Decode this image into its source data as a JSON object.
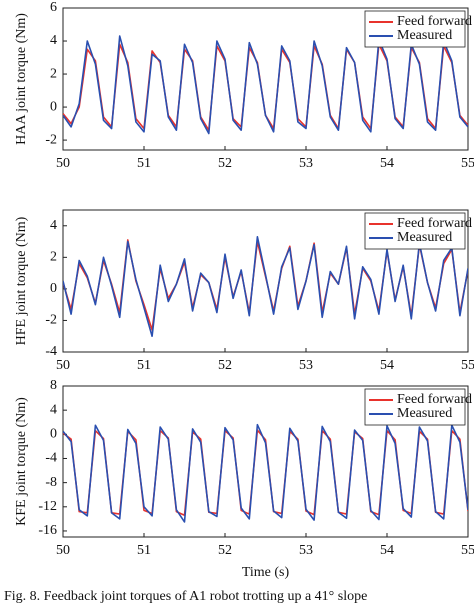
{
  "chart_data": [
    {
      "type": "line",
      "ylabel": "HAA joint torque (Nm)",
      "legend": "upper right",
      "x": [
        50,
        50.1,
        50.2,
        50.3,
        50.4,
        50.5,
        50.6,
        50.7,
        50.8,
        50.9,
        51,
        51.1,
        51.2,
        51.3,
        51.4,
        51.5,
        51.6,
        51.7,
        51.8,
        51.9,
        52,
        52.1,
        52.2,
        52.3,
        52.4,
        52.5,
        52.6,
        52.7,
        52.8,
        52.9,
        53,
        53.1,
        53.2,
        53.3,
        53.4,
        53.5,
        53.6,
        53.7,
        53.8,
        53.9,
        54,
        54.1,
        54.2,
        54.3,
        54.4,
        54.5,
        54.6,
        54.7,
        54.8,
        54.9,
        55
      ],
      "xlim": [
        50,
        55
      ],
      "xticks": [
        50,
        51,
        52,
        53,
        54,
        55
      ],
      "ylim": [
        -2.6,
        6
      ],
      "yticks": [
        -2,
        0,
        2,
        4,
        6
      ],
      "series": [
        {
          "name": "Feed forward",
          "color": "#e8322c",
          "values": [
            -0.4,
            -1.0,
            0.0,
            3.5,
            2.8,
            -0.6,
            -1.2,
            3.8,
            2.7,
            -0.7,
            -1.3,
            3.4,
            2.7,
            -0.5,
            -1.2,
            3.5,
            2.8,
            -0.6,
            -1.4,
            3.7,
            2.8,
            -0.7,
            -1.2,
            3.6,
            2.7,
            -0.5,
            -1.3,
            3.5,
            2.7,
            -0.7,
            -1.2,
            3.7,
            2.6,
            -0.5,
            -1.3,
            3.5,
            2.7,
            -0.6,
            -1.3,
            3.8,
            2.8,
            -0.6,
            -1.2,
            3.6,
            2.7,
            -0.7,
            -1.3,
            3.7,
            2.7,
            -0.5,
            -1.1
          ]
        },
        {
          "name": "Measured",
          "color": "#2a4fb0",
          "values": [
            -0.5,
            -1.2,
            0.2,
            4.0,
            2.6,
            -0.8,
            -1.3,
            4.3,
            2.5,
            -0.9,
            -1.5,
            3.2,
            2.8,
            -0.6,
            -1.4,
            3.8,
            2.7,
            -0.7,
            -1.6,
            4.0,
            2.9,
            -0.8,
            -1.4,
            3.9,
            2.6,
            -0.5,
            -1.5,
            3.7,
            2.8,
            -0.9,
            -1.3,
            4.0,
            2.5,
            -0.6,
            -1.4,
            3.6,
            2.7,
            -0.8,
            -1.5,
            4.1,
            2.9,
            -0.7,
            -1.3,
            3.8,
            2.6,
            -0.9,
            -1.4,
            4.0,
            2.8,
            -0.6,
            -1.2
          ]
        }
      ]
    },
    {
      "type": "line",
      "ylabel": "HFE joint torque (Nm)",
      "legend": "upper right",
      "x": [
        50,
        50.1,
        50.2,
        50.3,
        50.4,
        50.5,
        50.6,
        50.7,
        50.8,
        50.9,
        51,
        51.1,
        51.2,
        51.3,
        51.4,
        51.5,
        51.6,
        51.7,
        51.8,
        51.9,
        52,
        52.1,
        52.2,
        52.3,
        52.4,
        52.5,
        52.6,
        52.7,
        52.8,
        52.9,
        53,
        53.1,
        53.2,
        53.3,
        53.4,
        53.5,
        53.6,
        53.7,
        53.8,
        53.9,
        54,
        54.1,
        54.2,
        54.3,
        54.4,
        54.5,
        54.6,
        54.7,
        54.8,
        54.9,
        55
      ],
      "xlim": [
        50,
        55
      ],
      "xticks": [
        50,
        51,
        52,
        53,
        54,
        55
      ],
      "ylim": [
        -4,
        5
      ],
      "yticks": [
        -4,
        -2,
        0,
        2,
        4
      ],
      "series": [
        {
          "name": "Feed forward",
          "color": "#e8322c",
          "values": [
            0.4,
            -1.3,
            1.6,
            0.7,
            -0.9,
            1.8,
            0.3,
            -1.5,
            3.1,
            0.5,
            -1.0,
            -2.6,
            1.3,
            -0.6,
            0.3,
            1.7,
            -1.2,
            0.9,
            0.4,
            -1.3,
            2.0,
            -0.5,
            1.1,
            -1.5,
            3.0,
            0.8,
            -1.4,
            1.3,
            2.7,
            -1.1,
            0.5,
            2.9,
            -1.5,
            1.0,
            0.3,
            2.6,
            -1.6,
            1.3,
            0.5,
            -1.4,
            2.4,
            -0.7,
            1.4,
            -1.7,
            2.8,
            0.4,
            -1.2,
            1.6,
            2.5,
            -1.5,
            1.2
          ]
        },
        {
          "name": "Measured",
          "color": "#2a4fb0",
          "values": [
            0.5,
            -1.6,
            1.8,
            0.8,
            -1.0,
            2.0,
            0.2,
            -1.8,
            3.0,
            0.6,
            -1.2,
            -3.0,
            1.5,
            -0.8,
            0.3,
            1.9,
            -1.4,
            1.0,
            0.4,
            -1.5,
            2.2,
            -0.6,
            1.2,
            -1.7,
            3.3,
            0.9,
            -1.6,
            1.4,
            2.6,
            -1.3,
            0.5,
            2.8,
            -1.8,
            1.1,
            0.3,
            2.7,
            -1.9,
            1.4,
            0.6,
            -1.6,
            2.5,
            -0.8,
            1.5,
            -1.9,
            2.9,
            0.4,
            -1.4,
            1.8,
            2.6,
            -1.7,
            1.3
          ]
        }
      ]
    },
    {
      "type": "line",
      "ylabel": "KFE joint torque (Nm)",
      "xlabel": "Time (s)",
      "legend": "upper right",
      "x": [
        50,
        50.1,
        50.2,
        50.3,
        50.4,
        50.5,
        50.6,
        50.7,
        50.8,
        50.9,
        51,
        51.1,
        51.2,
        51.3,
        51.4,
        51.5,
        51.6,
        51.7,
        51.8,
        51.9,
        52,
        52.1,
        52.2,
        52.3,
        52.4,
        52.5,
        52.6,
        52.7,
        52.8,
        52.9,
        53,
        53.1,
        53.2,
        53.3,
        53.4,
        53.5,
        53.6,
        53.7,
        53.8,
        53.9,
        54,
        54.1,
        54.2,
        54.3,
        54.4,
        54.5,
        54.6,
        54.7,
        54.8,
        54.9,
        55
      ],
      "xlim": [
        50,
        55
      ],
      "xticks": [
        50,
        51,
        52,
        53,
        54,
        55
      ],
      "ylim": [
        -17,
        8
      ],
      "yticks": [
        -16,
        -12,
        -8,
        -4,
        0,
        4,
        8
      ],
      "series": [
        {
          "name": "Feed forward",
          "color": "#e8322c",
          "values": [
            0.2,
            -0.8,
            -12.8,
            -13.0,
            0.6,
            -0.7,
            -13.0,
            -13.2,
            0.5,
            -0.9,
            -12.6,
            -13.1,
            0.6,
            -0.6,
            -12.8,
            -13.4,
            0.4,
            -0.8,
            -12.9,
            -13.1,
            0.6,
            -0.6,
            -12.6,
            -13.2,
            0.7,
            -0.9,
            -12.8,
            -13.1,
            0.5,
            -0.8,
            -12.7,
            -13.3,
            0.6,
            -0.8,
            -12.9,
            -13.2,
            0.4,
            -0.7,
            -12.8,
            -13.3,
            0.6,
            -0.9,
            -12.6,
            -13.1,
            0.5,
            -0.8,
            -12.9,
            -13.2,
            0.6,
            -0.8,
            -12.7
          ]
        },
        {
          "name": "Measured",
          "color": "#2a4fb0",
          "values": [
            0.5,
            -1.2,
            -12.5,
            -13.5,
            1.5,
            -1.0,
            -13.0,
            -14.0,
            0.8,
            -1.5,
            -12.0,
            -13.5,
            1.2,
            -0.8,
            -12.5,
            -14.5,
            0.9,
            -1.3,
            -12.8,
            -13.6,
            1.1,
            -0.9,
            -12.2,
            -14.0,
            1.6,
            -1.4,
            -12.7,
            -13.8,
            1.0,
            -1.1,
            -12.4,
            -14.2,
            1.3,
            -1.2,
            -12.9,
            -13.9,
            0.7,
            -1.0,
            -12.6,
            -14.1,
            1.4,
            -1.5,
            -12.3,
            -13.7,
            1.2,
            -1.1,
            -12.8,
            -14.0,
            1.5,
            -1.3,
            -12.5
          ]
        }
      ]
    }
  ],
  "caption": "Fig. 8. Feedback joint torques of A1 robot trotting up a 41° slope"
}
